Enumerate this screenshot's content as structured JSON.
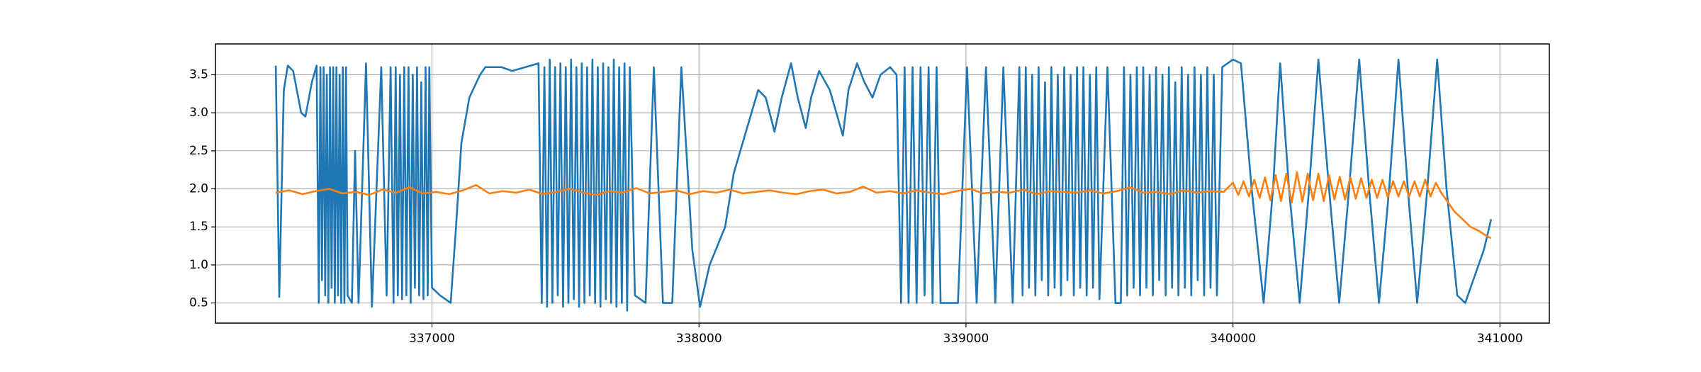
{
  "chart_data": {
    "type": "line",
    "xlim": [
      336189,
      341185
    ],
    "ylim": [
      0.235,
      3.905
    ],
    "xticks": [
      337000,
      338000,
      339000,
      340000,
      341000
    ],
    "yticks": [
      0.5,
      {
        "value": 1,
        "label": "1.0"
      },
      1.5,
      {
        "value": 2,
        "label": "2.0"
      },
      2.5,
      {
        "value": 3,
        "label": "3.0"
      },
      3.5
    ],
    "grid": true,
    "series": [
      {
        "color": "#1f77b4",
        "x": [
          336415,
          336428,
          336445,
          336460,
          336480,
          336510,
          336526,
          336550,
          336568,
          336576,
          336582,
          336588,
          336594,
          336600,
          336606,
          336612,
          336618,
          336624,
          336630,
          336636,
          336642,
          336648,
          336654,
          336660,
          336666,
          336672,
          336678,
          336684,
          336700,
          336712,
          336725,
          336753,
          336775,
          336810,
          336830,
          336845,
          336856,
          336864,
          336872,
          336880,
          336888,
          336896,
          336904,
          336912,
          336920,
          336928,
          336936,
          336944,
          336952,
          336960,
          336968,
          336976,
          336984,
          336990,
          337000,
          337030,
          337070,
          337090,
          337110,
          337140,
          337180,
          337200,
          337260,
          337300,
          337350,
          337399,
          337411,
          337421,
          337431,
          337441,
          337451,
          337461,
          337471,
          337481,
          337491,
          337501,
          337511,
          337521,
          337531,
          337541,
          337551,
          337561,
          337571,
          337581,
          337591,
          337601,
          337611,
          337621,
          337631,
          337641,
          337651,
          337661,
          337671,
          337681,
          337691,
          337701,
          337711,
          337721,
          337731,
          337741,
          337760,
          337800,
          337831,
          337865,
          337900,
          337934,
          337975,
          338004,
          338040,
          338098,
          338130,
          338180,
          338222,
          338250,
          338283,
          338310,
          338345,
          338370,
          338400,
          338420,
          338450,
          338490,
          338539,
          338560,
          338592,
          338620,
          338650,
          338680,
          338716,
          338740,
          338757,
          338770,
          338785,
          338800,
          338815,
          338830,
          338845,
          338860,
          338875,
          338890,
          338905,
          338940,
          338970,
          339004,
          339040,
          339075,
          339110,
          339140,
          339175,
          339200,
          339212,
          339224,
          339236,
          339248,
          339260,
          339272,
          339284,
          339296,
          339308,
          339320,
          339332,
          339344,
          339356,
          339368,
          339380,
          339392,
          339404,
          339416,
          339428,
          339440,
          339452,
          339464,
          339476,
          339488,
          339500,
          339530,
          339560,
          339580,
          339592,
          339604,
          339616,
          339628,
          339640,
          339652,
          339664,
          339676,
          339688,
          339700,
          339712,
          339724,
          339736,
          339748,
          339760,
          339772,
          339784,
          339796,
          339808,
          339820,
          339832,
          339844,
          339856,
          339868,
          339880,
          339892,
          339904,
          339916,
          339928,
          339940,
          339960,
          340000,
          340030,
          340070,
          340115,
          340150,
          340177,
          340210,
          340250,
          340285,
          340320,
          340360,
          340398,
          340435,
          340473,
          340510,
          340547,
          340585,
          340620,
          340655,
          340690,
          340728,
          340765,
          340800,
          340840,
          340870,
          340900,
          340940,
          340967
        ],
        "values": [
          3.62,
          0.58,
          3.3,
          3.62,
          3.55,
          3.0,
          2.95,
          3.4,
          3.62,
          0.5,
          3.6,
          0.8,
          3.6,
          0.6,
          3.5,
          0.5,
          3.6,
          0.7,
          3.6,
          0.5,
          3.6,
          0.6,
          3.5,
          0.5,
          3.6,
          0.5,
          3.6,
          0.6,
          0.5,
          2.5,
          0.5,
          3.65,
          0.45,
          3.6,
          0.6,
          3.6,
          0.5,
          3.6,
          0.6,
          3.5,
          0.55,
          3.6,
          0.6,
          3.6,
          0.5,
          3.5,
          0.7,
          3.6,
          0.6,
          3.4,
          0.55,
          3.6,
          0.6,
          3.6,
          0.7,
          0.6,
          0.5,
          1.5,
          2.6,
          3.2,
          3.5,
          3.6,
          3.6,
          3.55,
          3.6,
          3.65,
          0.5,
          3.6,
          0.45,
          3.7,
          0.5,
          3.6,
          0.6,
          3.65,
          0.45,
          3.6,
          0.5,
          3.7,
          0.55,
          3.6,
          0.45,
          3.65,
          0.5,
          3.6,
          0.6,
          3.7,
          0.5,
          3.6,
          0.45,
          3.65,
          0.55,
          3.6,
          0.5,
          3.7,
          0.45,
          3.6,
          0.5,
          3.65,
          0.4,
          3.6,
          0.6,
          0.5,
          3.6,
          0.5,
          0.5,
          3.6,
          1.2,
          0.45,
          1.0,
          1.5,
          2.2,
          2.8,
          3.3,
          3.2,
          2.75,
          3.2,
          3.65,
          3.2,
          2.8,
          3.2,
          3.55,
          3.3,
          2.7,
          3.3,
          3.65,
          3.4,
          3.2,
          3.5,
          3.6,
          3.5,
          0.5,
          3.6,
          0.5,
          3.6,
          0.5,
          3.6,
          0.6,
          3.6,
          0.5,
          3.6,
          0.5,
          0.5,
          0.5,
          3.6,
          0.5,
          3.6,
          0.5,
          3.6,
          0.5,
          3.6,
          0.6,
          3.6,
          0.7,
          3.5,
          0.6,
          3.6,
          0.8,
          3.4,
          0.6,
          3.6,
          0.7,
          3.5,
          0.6,
          3.6,
          0.8,
          3.5,
          0.6,
          3.6,
          0.7,
          3.6,
          0.6,
          3.5,
          0.7,
          3.6,
          0.55,
          3.6,
          0.5,
          0.5,
          3.6,
          0.6,
          3.5,
          0.7,
          3.6,
          0.6,
          3.6,
          0.7,
          3.5,
          0.6,
          3.6,
          0.8,
          3.5,
          0.6,
          3.6,
          0.7,
          3.4,
          0.6,
          3.6,
          0.7,
          3.5,
          0.6,
          3.6,
          0.8,
          3.5,
          0.6,
          3.6,
          0.7,
          3.5,
          0.6,
          3.6,
          3.7,
          3.65,
          2.0,
          0.5,
          2.0,
          3.65,
          2.0,
          0.5,
          2.0,
          3.7,
          2.0,
          0.5,
          2.0,
          3.7,
          2.0,
          0.5,
          2.0,
          3.7,
          2.0,
          0.5,
          2.0,
          3.7,
          2.0,
          0.6,
          0.5,
          0.8,
          1.2,
          1.6
        ]
      },
      {
        "color": "#ff7f0e",
        "x": [
          336415,
          336465,
          336515,
          336565,
          336615,
          336665,
          336715,
          336765,
          336815,
          336865,
          336915,
          336965,
          337015,
          337065,
          337115,
          337165,
          337215,
          337265,
          337315,
          337365,
          337415,
          337465,
          337515,
          337565,
          337615,
          337665,
          337715,
          337765,
          337815,
          337865,
          337915,
          337965,
          338015,
          338065,
          338115,
          338165,
          338215,
          338265,
          338315,
          338365,
          338415,
          338465,
          338515,
          338565,
          338615,
          338665,
          338715,
          338765,
          338815,
          338865,
          338915,
          338965,
          339015,
          339065,
          339115,
          339165,
          339215,
          339265,
          339315,
          339365,
          339415,
          339465,
          339515,
          339565,
          339615,
          339665,
          339715,
          339765,
          339815,
          339865,
          339915,
          339965,
          340000,
          340020,
          340040,
          340060,
          340080,
          340100,
          340120,
          340140,
          340160,
          340180,
          340200,
          340220,
          340240,
          340260,
          340280,
          340300,
          340320,
          340340,
          340360,
          340380,
          340400,
          340420,
          340440,
          340460,
          340480,
          340500,
          340520,
          340540,
          340560,
          340580,
          340600,
          340620,
          340640,
          340660,
          340680,
          340700,
          340720,
          340740,
          340760,
          340780,
          340800,
          340830,
          340860,
          340890,
          340920,
          340950,
          340967
        ],
        "values": [
          1.95,
          1.98,
          1.93,
          1.97,
          2.0,
          1.94,
          1.96,
          1.92,
          1.99,
          1.95,
          2.02,
          1.94,
          1.96,
          1.93,
          1.98,
          2.05,
          1.94,
          1.97,
          1.95,
          1.99,
          1.93,
          1.96,
          2.0,
          1.95,
          1.92,
          1.97,
          1.95,
          2.01,
          1.94,
          1.96,
          1.98,
          1.93,
          1.97,
          1.95,
          1.99,
          1.94,
          1.96,
          1.98,
          1.95,
          1.93,
          1.97,
          1.99,
          1.94,
          1.96,
          2.03,
          1.95,
          1.97,
          1.94,
          1.98,
          1.95,
          1.93,
          1.97,
          2.0,
          1.94,
          1.96,
          1.95,
          1.99,
          1.93,
          1.97,
          1.96,
          1.95,
          1.98,
          1.94,
          1.97,
          2.02,
          1.95,
          1.96,
          1.93,
          1.98,
          1.95,
          1.97,
          1.96,
          2.08,
          1.92,
          2.1,
          1.9,
          2.12,
          1.88,
          2.15,
          1.85,
          2.18,
          1.84,
          2.2,
          1.82,
          2.22,
          1.83,
          2.2,
          1.85,
          2.2,
          1.84,
          2.18,
          1.86,
          2.16,
          1.86,
          2.15,
          1.87,
          2.14,
          1.88,
          2.12,
          1.88,
          2.12,
          1.89,
          2.1,
          1.9,
          2.1,
          1.9,
          2.1,
          1.9,
          2.12,
          1.9,
          2.08,
          1.95,
          1.85,
          1.7,
          1.6,
          1.5,
          1.45,
          1.38,
          1.35
        ]
      }
    ]
  }
}
